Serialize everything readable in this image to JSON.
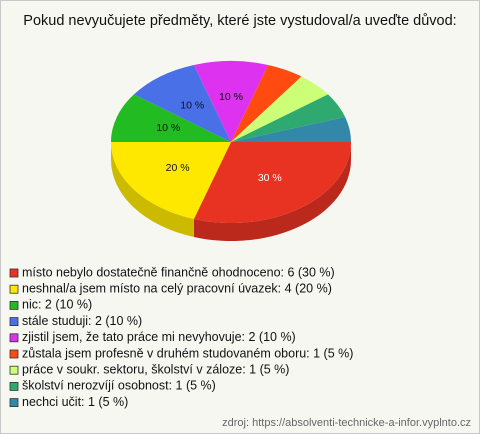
{
  "chart_data": {
    "type": "pie3d",
    "title": "Pokud nevyučujete předměty, které jste vystudoval/a uveďte důvod:",
    "categories": [
      "místo nebylo dostatečně finančně ohodnoceno: 6 (30 %)",
      "neshnal/a jsem místo na celý pracovní úvazek: 4 (20 %)",
      "nic: 2 (10 %)",
      "stále studuji: 2 (10 %)",
      "zjistil jsem, že tato práce mi nevyhovuje: 2 (10 %)",
      "zůstala jsem profesně v druhém studovaném oboru: 1 (5 %)",
      "práce v soukr. sektoru, školství v záloze: 1 (5 %)",
      "školství nerozvíjí osobnost: 1 (5 %)",
      "nechci učit: 1 (5 %)"
    ],
    "values": [
      30,
      20,
      10,
      10,
      10,
      5,
      5,
      5,
      5
    ],
    "value_labels": [
      "30 %",
      "20 %",
      "10 %",
      "10 %",
      "10 %",
      null,
      null,
      null,
      null
    ],
    "colors": [
      "#e83323",
      "#ffe800",
      "#22bb22",
      "#4a70e8",
      "#dd33f0",
      "#ff4a10",
      "#ccff77",
      "#2eaa70",
      "#3388a8"
    ],
    "source": "zdroj: https://absolventi-technicke-a-infor.vyplnto.cz"
  }
}
